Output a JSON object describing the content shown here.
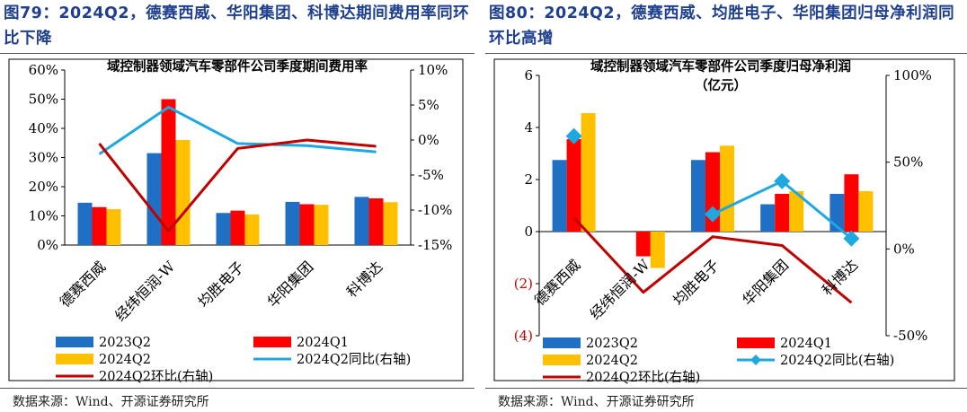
{
  "figure1": {
    "fig_title": "图79：2024Q2，德赛西威、华阳集团、科博达期间费用率同环比下降",
    "source": "数据来源：Wind、开源证券研究所"
  },
  "figure2": {
    "fig_title": "图80：2024Q2，德赛西威、均胜电子、华阳集团归母净利润同环比高增",
    "source": "数据来源：Wind、开源证券研究所"
  },
  "chart_data": [
    {
      "type": "bar",
      "title": "域控制器领域汽车零部件公司季度期间费用率",
      "categories": [
        "德赛西威",
        "经纬恒润-W",
        "均胜电子",
        "华阳集团",
        "科博达"
      ],
      "series": [
        {
          "name": "2023Q2",
          "values": [
            14.5,
            31.5,
            11.0,
            14.8,
            16.5
          ],
          "color": "#1f6fc5"
        },
        {
          "name": "2024Q1",
          "values": [
            13.0,
            50.0,
            11.8,
            14.0,
            16.0
          ],
          "color": "#ff0000"
        },
        {
          "name": "2024Q2",
          "values": [
            12.3,
            36.0,
            10.5,
            13.8,
            14.7
          ],
          "color": "#ffc000"
        }
      ],
      "lines": [
        {
          "name": "2024Q2同比(右轴)",
          "values": [
            -2.0,
            4.7,
            -0.5,
            -0.8,
            -1.7
          ],
          "color": "#1fa7e0",
          "markers": false
        },
        {
          "name": "2024Q2环比(右轴)",
          "values": [
            -0.5,
            -13.0,
            -1.2,
            0.0,
            -0.9
          ],
          "color": "#c00000",
          "markers": false
        }
      ],
      "yleft": {
        "ylim": [
          0,
          60
        ],
        "ticks": [
          "0%",
          "10%",
          "20%",
          "30%",
          "40%",
          "50%",
          "60%"
        ]
      },
      "yright": {
        "ylim": [
          -15,
          10
        ],
        "ticks": [
          "-15%",
          "-10%",
          "-5%",
          "0%",
          "5%",
          "10%"
        ]
      },
      "legend": [
        "2023Q2",
        "2024Q1",
        "2024Q2",
        "2024Q2同比(右轴)",
        "2024Q2环比(右轴)"
      ],
      "legend_position": "bottom",
      "grid": false
    },
    {
      "type": "bar",
      "title": "域控制器领域汽车零部件公司季度归母净利润",
      "subtitle": "（亿元）",
      "categories": [
        "德赛西威",
        "经纬恒润-W",
        "均胜电子",
        "华阳集团",
        "科博达"
      ],
      "series": [
        {
          "name": "2023Q2",
          "values": [
            2.75,
            0.0,
            2.75,
            1.05,
            1.45
          ],
          "color": "#1f6fc5"
        },
        {
          "name": "2024Q1",
          "values": [
            3.55,
            -0.95,
            3.05,
            1.45,
            2.2
          ],
          "color": "#ff0000"
        },
        {
          "name": "2024Q2",
          "values": [
            4.55,
            -1.4,
            3.3,
            1.55,
            1.55
          ],
          "color": "#ffc000"
        }
      ],
      "lines": [
        {
          "name": "2024Q2同比(右轴)",
          "values": [
            65,
            null,
            20,
            39,
            6
          ],
          "color": "#1fa7e0",
          "markers": true
        },
        {
          "name": "2024Q2环比(右轴)",
          "values": [
            18,
            -25,
            7,
            2,
            -31
          ],
          "color": "#c00000",
          "markers": false
        }
      ],
      "yleft": {
        "ylim": [
          -4,
          6
        ],
        "ticks": [
          "(4)",
          "(2)",
          "0",
          "2",
          "4",
          "6"
        ]
      },
      "yright": {
        "ylim": [
          -50,
          100
        ],
        "ticks": [
          "-50%",
          "0%",
          "50%",
          "100%"
        ]
      },
      "legend": [
        "2023Q2",
        "2024Q1",
        "2024Q2",
        "2024Q2同比(右轴)",
        "2024Q2环比(右轴)"
      ],
      "legend_position": "bottom",
      "grid": false
    }
  ]
}
